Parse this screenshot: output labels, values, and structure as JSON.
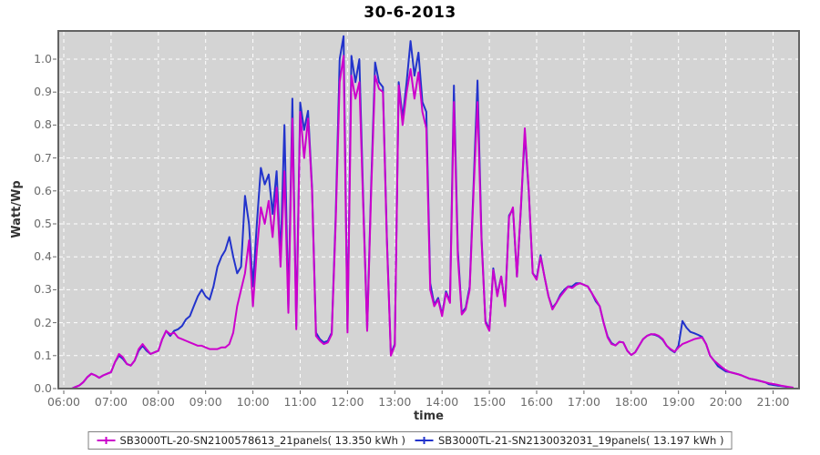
{
  "title": "30-6-2013",
  "colors": {
    "series1": "#cc00cc",
    "series2": "#2233cc",
    "plot_bg": "#d4d4d4",
    "grid": "#ffffff",
    "plot_border": "#636363",
    "tick_color": "#666666",
    "tick_text": "#6b6b6b",
    "axis_label": "#333333",
    "page_bg": "#ffffff",
    "legend_border": "#808080",
    "legend_text": "#222222"
  },
  "x_axis": {
    "label": "time",
    "ticks": [
      "06:00",
      "07:00",
      "08:00",
      "09:00",
      "10:00",
      "11:00",
      "12:00",
      "13:00",
      "14:00",
      "15:00",
      "16:00",
      "17:00",
      "18:00",
      "19:00",
      "20:00",
      "21:00"
    ]
  },
  "y_axis": {
    "label": "Watt/Wp",
    "ticks": [
      "0.0",
      "0.1",
      "0.2",
      "0.3",
      "0.4",
      "0.5",
      "0.6",
      "0.7",
      "0.8",
      "0.9",
      "1.0"
    ]
  },
  "legend": {
    "items": [
      {
        "label": "SB3000TL-20-SN2100578613_21panels( 13.350 kWh )",
        "color_key": "series1"
      },
      {
        "label": "SB3000TL-21-SN2130032031_19panels( 13.197 kWh )",
        "color_key": "series2"
      }
    ]
  },
  "chart_data": {
    "type": "line",
    "title": "30-6-2013",
    "xlabel": "time",
    "ylabel": "Watt/Wp",
    "x_unit": "minutes_after_06:00",
    "x_start_minutes": 10,
    "x_step_minutes": 5,
    "x_axis_range": [
      "06:00",
      "21:32"
    ],
    "ylim": [
      0.0,
      1.088
    ],
    "grid": "white dashed on gray background",
    "legend_position": "bottom",
    "series": [
      {
        "name": "SB3000TL-20-SN2100578613_21panels( 13.350 kWh )",
        "color": "#cc00cc",
        "energy_kwh": 13.35,
        "values": [
          0.0,
          0.005,
          0.01,
          0.02,
          0.035,
          0.045,
          0.04,
          0.033,
          0.04,
          0.045,
          0.05,
          0.08,
          0.105,
          0.095,
          0.075,
          0.07,
          0.085,
          0.12,
          0.135,
          0.12,
          0.105,
          0.11,
          0.115,
          0.15,
          0.175,
          0.165,
          0.17,
          0.155,
          0.15,
          0.145,
          0.14,
          0.135,
          0.13,
          0.13,
          0.125,
          0.12,
          0.12,
          0.12,
          0.125,
          0.125,
          0.135,
          0.17,
          0.25,
          0.3,
          0.35,
          0.45,
          0.25,
          0.42,
          0.55,
          0.5,
          0.57,
          0.46,
          0.61,
          0.37,
          0.66,
          0.23,
          0.82,
          0.18,
          0.84,
          0.7,
          0.82,
          0.6,
          0.16,
          0.145,
          0.135,
          0.14,
          0.165,
          0.5,
          0.93,
          1.01,
          0.17,
          0.95,
          0.88,
          0.93,
          0.55,
          0.175,
          0.6,
          0.95,
          0.91,
          0.9,
          0.45,
          0.1,
          0.13,
          0.92,
          0.8,
          0.9,
          0.97,
          0.88,
          0.96,
          0.84,
          0.79,
          0.3,
          0.25,
          0.27,
          0.22,
          0.29,
          0.26,
          0.87,
          0.4,
          0.225,
          0.24,
          0.3,
          0.6,
          0.87,
          0.45,
          0.2,
          0.175,
          0.36,
          0.28,
          0.34,
          0.25,
          0.52,
          0.55,
          0.34,
          0.55,
          0.79,
          0.6,
          0.35,
          0.33,
          0.4,
          0.34,
          0.28,
          0.24,
          0.26,
          0.28,
          0.295,
          0.31,
          0.305,
          0.315,
          0.32,
          0.315,
          0.31,
          0.29,
          0.27,
          0.25,
          0.2,
          0.155,
          0.135,
          0.131,
          0.142,
          0.14,
          0.115,
          0.102,
          0.11,
          0.13,
          0.15,
          0.16,
          0.165,
          0.165,
          0.16,
          0.15,
          0.13,
          0.12,
          0.112,
          0.125,
          0.135,
          0.14,
          0.145,
          0.15,
          0.153,
          0.155,
          0.135,
          0.1,
          0.085,
          0.075,
          0.065,
          0.056,
          0.05,
          0.047,
          0.044,
          0.04,
          0.035,
          0.03,
          0.028,
          0.025,
          0.022,
          0.019,
          0.016,
          0.014,
          0.012,
          0.009,
          0.007,
          0.005,
          0.003
        ]
      },
      {
        "name": "SB3000TL-21-SN2130032031_19panels( 13.197 kWh )",
        "color": "#2233cc",
        "energy_kwh": 13.197,
        "values": [
          0.0,
          0.005,
          0.01,
          0.02,
          0.035,
          0.045,
          0.04,
          0.033,
          0.04,
          0.045,
          0.05,
          0.08,
          0.1,
          0.09,
          0.075,
          0.07,
          0.085,
          0.115,
          0.13,
          0.115,
          0.105,
          0.11,
          0.115,
          0.15,
          0.175,
          0.16,
          0.175,
          0.18,
          0.19,
          0.21,
          0.22,
          0.25,
          0.28,
          0.3,
          0.28,
          0.27,
          0.31,
          0.37,
          0.4,
          0.42,
          0.46,
          0.4,
          0.35,
          0.37,
          0.585,
          0.5,
          0.31,
          0.5,
          0.67,
          0.62,
          0.65,
          0.53,
          0.66,
          0.4,
          0.8,
          0.24,
          0.88,
          0.19,
          0.868,
          0.785,
          0.843,
          0.61,
          0.17,
          0.15,
          0.14,
          0.145,
          0.17,
          0.52,
          1.0,
          1.07,
          0.18,
          1.01,
          0.93,
          1.0,
          0.57,
          0.18,
          0.62,
          0.99,
          0.93,
          0.915,
          0.46,
          0.105,
          0.135,
          0.93,
          0.82,
          0.93,
          1.055,
          0.95,
          1.02,
          0.87,
          0.84,
          0.32,
          0.255,
          0.275,
          0.225,
          0.295,
          0.265,
          0.92,
          0.42,
          0.23,
          0.245,
          0.31,
          0.62,
          0.935,
          0.46,
          0.205,
          0.18,
          0.365,
          0.285,
          0.34,
          0.255,
          0.525,
          0.545,
          0.34,
          0.545,
          0.775,
          0.595,
          0.35,
          0.335,
          0.405,
          0.34,
          0.28,
          0.245,
          0.26,
          0.285,
          0.3,
          0.31,
          0.31,
          0.32,
          0.32,
          0.315,
          0.31,
          0.29,
          0.265,
          0.25,
          0.2,
          0.158,
          0.138,
          0.131,
          0.142,
          0.14,
          0.115,
          0.102,
          0.11,
          0.13,
          0.15,
          0.16,
          0.165,
          0.163,
          0.158,
          0.148,
          0.13,
          0.118,
          0.11,
          0.13,
          0.205,
          0.185,
          0.172,
          0.168,
          0.163,
          0.157,
          0.135,
          0.1,
          0.085,
          0.068,
          0.06,
          0.052,
          0.05,
          0.047,
          0.044,
          0.04,
          0.035,
          0.03,
          0.028,
          0.025,
          0.022,
          0.019,
          0.013,
          0.011,
          0.009,
          0.008,
          0.006,
          0.004,
          0.002
        ]
      }
    ]
  }
}
